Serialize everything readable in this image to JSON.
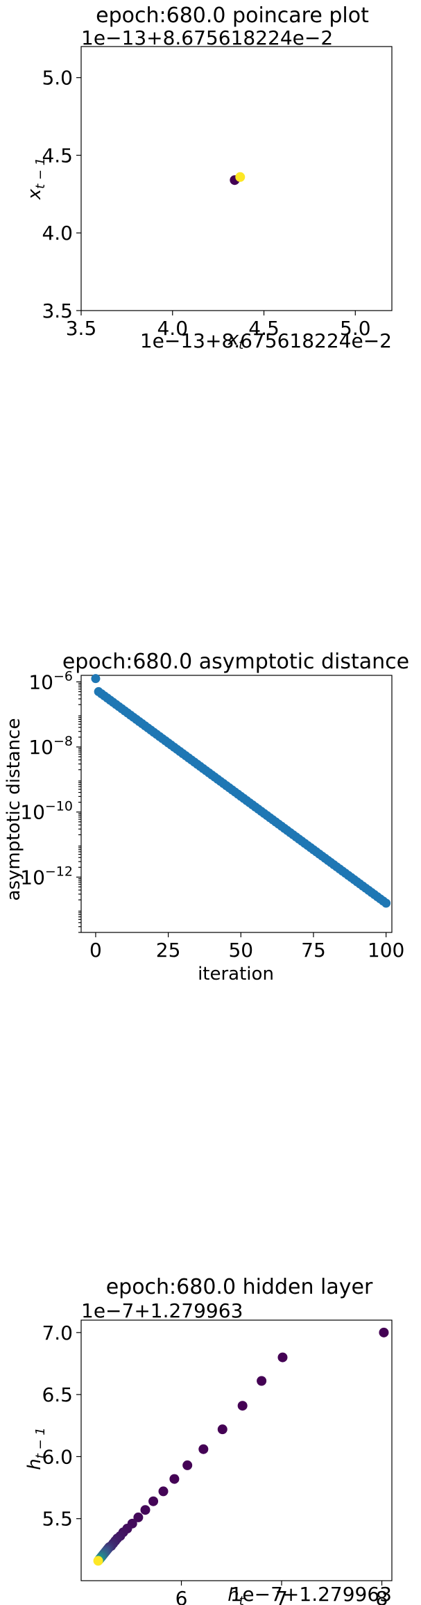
{
  "chart_data": [
    {
      "type": "scatter",
      "title": "epoch:680.0 poincare plot",
      "xlabel": "x_t",
      "ylabel": "x_{t-1}",
      "x_offset_label": "1e−13+8.675618224e−2",
      "y_offset_label": "1e−13+8.675618224e−2",
      "xlim": [
        3.5,
        5.2
      ],
      "ylim": [
        3.5,
        5.2
      ],
      "x_ticks": [
        "3.5",
        "4.0",
        "4.5",
        "5.0"
      ],
      "y_ticks": [
        "3.5",
        "4.0",
        "4.5",
        "5.0"
      ],
      "colormap": "viridis",
      "points": [
        {
          "x": 4.34,
          "y": 4.34,
          "color": "#440154"
        },
        {
          "x": 4.37,
          "y": 4.36,
          "color": "#fde725"
        }
      ]
    },
    {
      "type": "scatter",
      "title": "epoch:680.0 asymptotic distance",
      "xlabel": "iteration",
      "ylabel": "asymptotic distance",
      "xlim": [
        -5,
        102
      ],
      "ylim_log10": [
        -13.7,
        -5.8
      ],
      "yscale": "log",
      "x_ticks": [
        "0",
        "25",
        "50",
        "75",
        "100"
      ],
      "y_ticks": [
        "10^-6",
        "10^-8",
        "10^-10",
        "10^-12"
      ],
      "color": "#1f77b4",
      "start": {
        "x": 0,
        "log10_y": -5.9
      },
      "second": {
        "x": 1,
        "log10_y": -6.3
      },
      "end": {
        "x": 100,
        "log10_y": -12.8
      },
      "n_points": 101
    },
    {
      "type": "scatter",
      "title": "epoch:680.0 hidden layer",
      "xlabel": "h_t",
      "ylabel": "h_{t-1}",
      "x_offset_label": "1e−7+1.279963",
      "y_offset_label": "1e−7+1.279963",
      "xlim": [
        5.0,
        8.1
      ],
      "ylim": [
        5.0,
        7.1
      ],
      "x_ticks": [
        "6",
        "7",
        "8"
      ],
      "y_ticks": [
        "5.5",
        "6.0",
        "6.5",
        "7.0"
      ],
      "colormap": "viridis",
      "points_x": [
        8.02,
        7.01,
        6.8,
        6.61,
        6.41,
        6.22,
        6.06,
        5.93,
        5.82,
        5.72,
        5.64,
        5.57,
        5.51,
        5.46,
        5.42,
        5.39,
        5.36,
        5.34,
        5.32,
        5.3,
        5.28,
        5.27,
        5.26,
        5.25,
        5.24,
        5.23,
        5.22,
        5.21,
        5.2,
        5.19,
        5.18,
        5.17
      ],
      "points_y": [
        7.0,
        6.8,
        6.61,
        6.41,
        6.22,
        6.06,
        5.93,
        5.82,
        5.72,
        5.64,
        5.57,
        5.51,
        5.46,
        5.42,
        5.39,
        5.36,
        5.34,
        5.32,
        5.3,
        5.28,
        5.27,
        5.26,
        5.25,
        5.24,
        5.23,
        5.22,
        5.21,
        5.2,
        5.19,
        5.18,
        5.17,
        5.16
      ]
    }
  ]
}
